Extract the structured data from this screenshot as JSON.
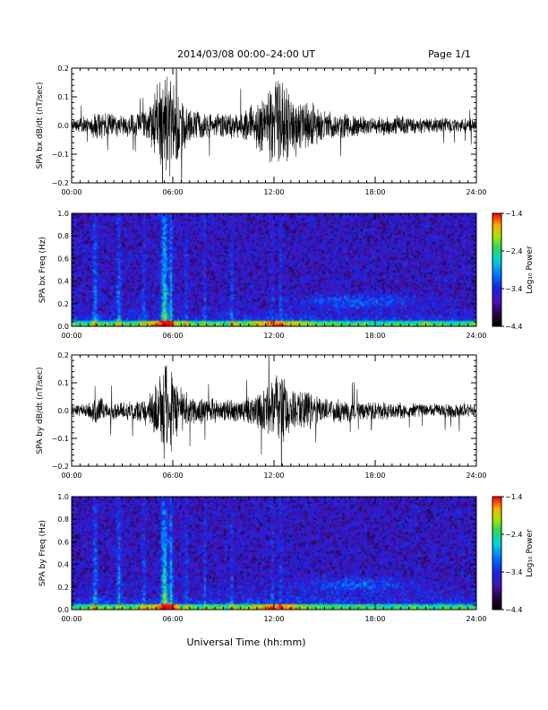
{
  "header": {
    "title": "2014/03/08  00:00–24:00 UT",
    "page": "Page 1/1"
  },
  "xlabel": "Universal Time (hh:mm)",
  "chart_data": [
    {
      "id": "bx-waveform",
      "type": "line",
      "ylabel": "SPA bx dB/dt (nT/sec)",
      "xlim": [
        0,
        24
      ],
      "ylim": [
        -0.2,
        0.2
      ],
      "xticks": [
        "00:00",
        "06:00",
        "12:00",
        "18:00",
        "24:00"
      ],
      "yticks": [
        "−0.2",
        "−0.1",
        "0.0",
        "0.1",
        "0.2"
      ],
      "envelope_hours": [
        0,
        1,
        1.5,
        2,
        3,
        4,
        4.5,
        5,
        5.5,
        5.8,
        6.2,
        7,
        8,
        9,
        10,
        11,
        12,
        12.3,
        13,
        14,
        15,
        16,
        17,
        18,
        19,
        20,
        21,
        22,
        23,
        24
      ],
      "envelope_amplitude": [
        0.025,
        0.035,
        0.06,
        0.05,
        0.04,
        0.05,
        0.07,
        0.15,
        0.2,
        0.2,
        0.14,
        0.07,
        0.05,
        0.05,
        0.05,
        0.09,
        0.17,
        0.2,
        0.12,
        0.1,
        0.06,
        0.05,
        0.04,
        0.035,
        0.04,
        0.035,
        0.03,
        0.035,
        0.03,
        0.025
      ]
    },
    {
      "id": "bx-spectrogram",
      "type": "heatmap",
      "ylabel": "SPA bx Freq (Hz)",
      "xlim": [
        0,
        24
      ],
      "ylim": [
        0,
        1.0
      ],
      "xticks": [
        "00:00",
        "06:00",
        "12:00",
        "18:00",
        "24:00"
      ],
      "yticks": [
        "0.0",
        "0.2",
        "0.4",
        "0.6",
        "0.8",
        "1.0"
      ],
      "colorbar": {
        "label": "Log₁₀ Power",
        "range": [
          -4.4,
          -1.4
        ],
        "ticks": [
          "−1.4",
          "−2.4",
          "−3.4",
          "−4.4"
        ]
      }
    },
    {
      "id": "by-waveform",
      "type": "line",
      "ylabel": "SPA by dB/dt (nT/sec)",
      "xlim": [
        0,
        24
      ],
      "ylim": [
        -0.2,
        0.2
      ],
      "xticks": [
        "00:00",
        "06:00",
        "12:00",
        "18:00",
        "24:00"
      ],
      "yticks": [
        "−0.2",
        "−0.1",
        "0.0",
        "0.1",
        "0.2"
      ],
      "envelope_hours": [
        0,
        1,
        1.5,
        2,
        3,
        4,
        4.5,
        5,
        5.5,
        5.8,
        6.2,
        7,
        8,
        9,
        10,
        11,
        12,
        12.3,
        13,
        14,
        15,
        16,
        17,
        18,
        19,
        20,
        21,
        22,
        23,
        24
      ],
      "envelope_amplitude": [
        0.02,
        0.03,
        0.06,
        0.04,
        0.035,
        0.04,
        0.06,
        0.12,
        0.2,
        0.18,
        0.12,
        0.06,
        0.05,
        0.045,
        0.045,
        0.07,
        0.14,
        0.2,
        0.09,
        0.08,
        0.05,
        0.045,
        0.04,
        0.035,
        0.035,
        0.03,
        0.03,
        0.03,
        0.03,
        0.025
      ]
    },
    {
      "id": "by-spectrogram",
      "type": "heatmap",
      "ylabel": "SPA by Freq (Hz)",
      "xlim": [
        0,
        24
      ],
      "ylim": [
        0,
        1.0
      ],
      "xticks": [
        "00:00",
        "06:00",
        "12:00",
        "18:00",
        "24:00"
      ],
      "yticks": [
        "0.0",
        "0.2",
        "0.4",
        "0.6",
        "0.8",
        "1.0"
      ],
      "colorbar": {
        "label": "Log₁₀ Power",
        "range": [
          -4.4,
          -1.4
        ],
        "ticks": [
          "−1.4",
          "−2.4",
          "−3.4",
          "−4.4"
        ]
      }
    }
  ]
}
